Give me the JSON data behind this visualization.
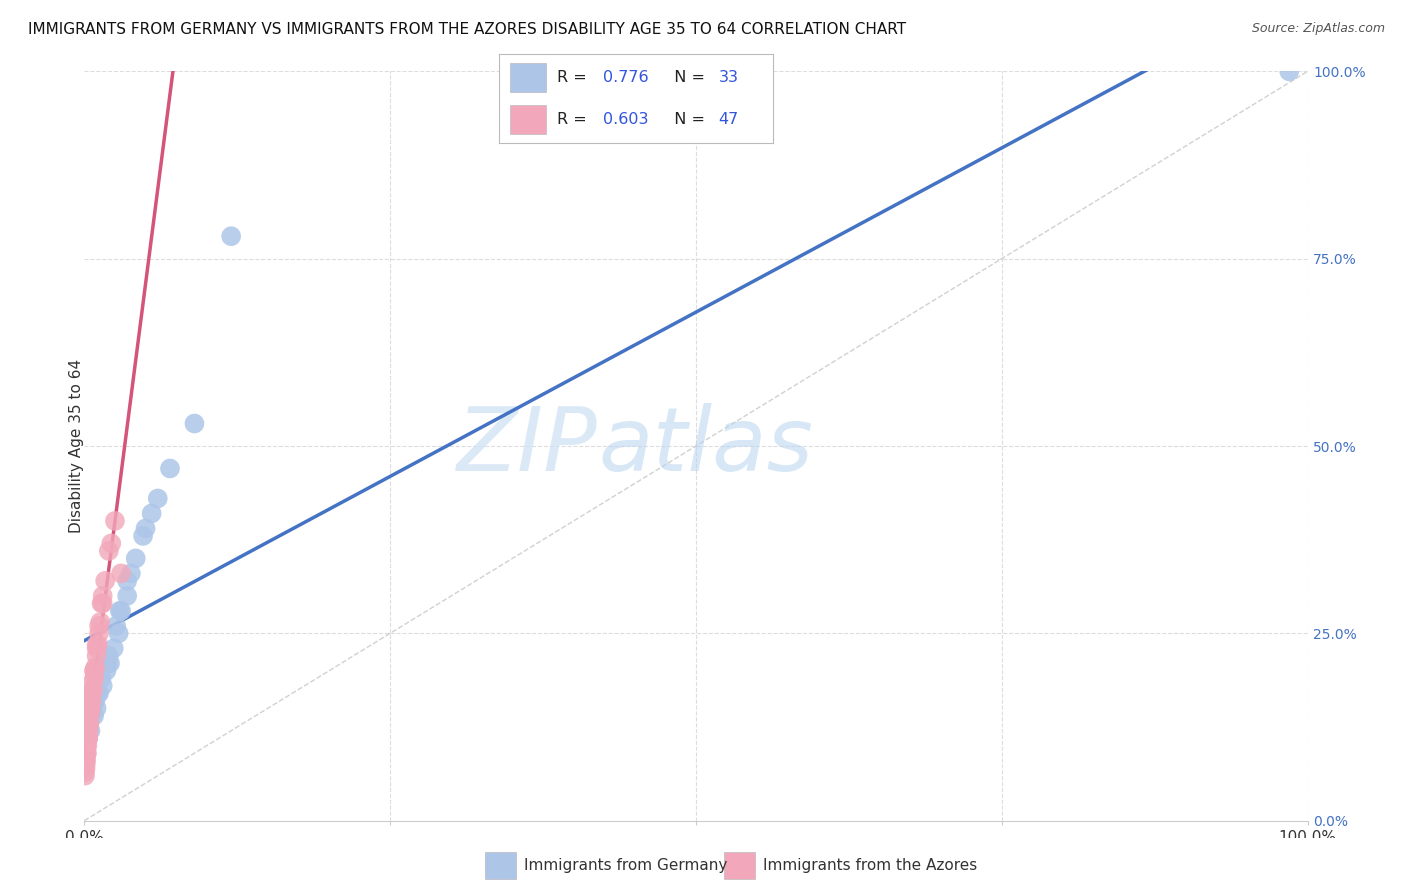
{
  "title": "IMMIGRANTS FROM GERMANY VS IMMIGRANTS FROM THE AZORES DISABILITY AGE 35 TO 64 CORRELATION CHART",
  "source": "Source: ZipAtlas.com",
  "ylabel": "Disability Age 35 to 64",
  "legend_germany_r": "0.776",
  "legend_germany_n": "33",
  "legend_azores_r": "0.603",
  "legend_azores_n": "47",
  "legend1_label": "Immigrants from Germany",
  "legend2_label": "Immigrants from the Azores",
  "color_germany": "#adc6e8",
  "color_azores": "#f2a8ba",
  "line_germany": "#4472c4",
  "line_azores": "#d4547a",
  "line_diag_color": "#cccccc",
  "watermark_zip": "ZIP",
  "watermark_atlas": "atlas",
  "right_tick_color": "#4472c4",
  "xlim": [
    0,
    100
  ],
  "ylim": [
    0,
    100
  ],
  "background_color": "#ffffff",
  "grid_color": "#dddddd",
  "germany_x": [
    0.8,
    1.5,
    2.1,
    2.8,
    3.5,
    4.2,
    5.0,
    6.0,
    0.5,
    1.0,
    1.8,
    2.4,
    3.0,
    0.3,
    0.7,
    1.2,
    1.9,
    2.6,
    3.8,
    4.8,
    0.4,
    0.9,
    1.4,
    2.0,
    2.9,
    3.5,
    0.6,
    1.1,
    5.5,
    7.0,
    9.0,
    12.0,
    98.5
  ],
  "germany_y": [
    14.0,
    18.0,
    21.0,
    25.0,
    30.0,
    35.0,
    39.0,
    43.0,
    12.0,
    15.0,
    20.0,
    23.0,
    28.0,
    11.0,
    14.5,
    17.0,
    21.0,
    26.0,
    33.0,
    38.0,
    13.0,
    16.0,
    19.0,
    22.0,
    28.0,
    32.0,
    14.0,
    17.0,
    41.0,
    47.0,
    53.0,
    78.0,
    100.0
  ],
  "azores_x": [
    0.05,
    0.1,
    0.15,
    0.2,
    0.25,
    0.3,
    0.35,
    0.4,
    0.5,
    0.6,
    0.7,
    0.8,
    0.9,
    1.0,
    1.1,
    1.2,
    1.3,
    1.5,
    1.7,
    2.0,
    2.5,
    3.0,
    0.05,
    0.1,
    0.15,
    0.2,
    0.25,
    0.3,
    0.4,
    0.5,
    0.6,
    0.7,
    0.8,
    1.0,
    1.2,
    1.4,
    0.05,
    0.1,
    0.2,
    0.3,
    0.4,
    0.5,
    0.6,
    0.8,
    1.0,
    1.5,
    2.2
  ],
  "azores_y": [
    6.0,
    7.0,
    8.0,
    9.0,
    10.0,
    11.0,
    12.0,
    13.0,
    14.5,
    16.0,
    17.5,
    19.0,
    20.5,
    22.0,
    23.5,
    25.0,
    26.5,
    29.0,
    32.0,
    36.0,
    40.0,
    33.0,
    7.5,
    8.5,
    9.5,
    10.5,
    11.5,
    12.5,
    14.0,
    15.5,
    17.0,
    18.5,
    20.0,
    23.0,
    26.0,
    29.0,
    6.5,
    7.5,
    9.0,
    11.0,
    13.0,
    15.0,
    17.0,
    20.0,
    23.5,
    30.0,
    37.0
  ]
}
